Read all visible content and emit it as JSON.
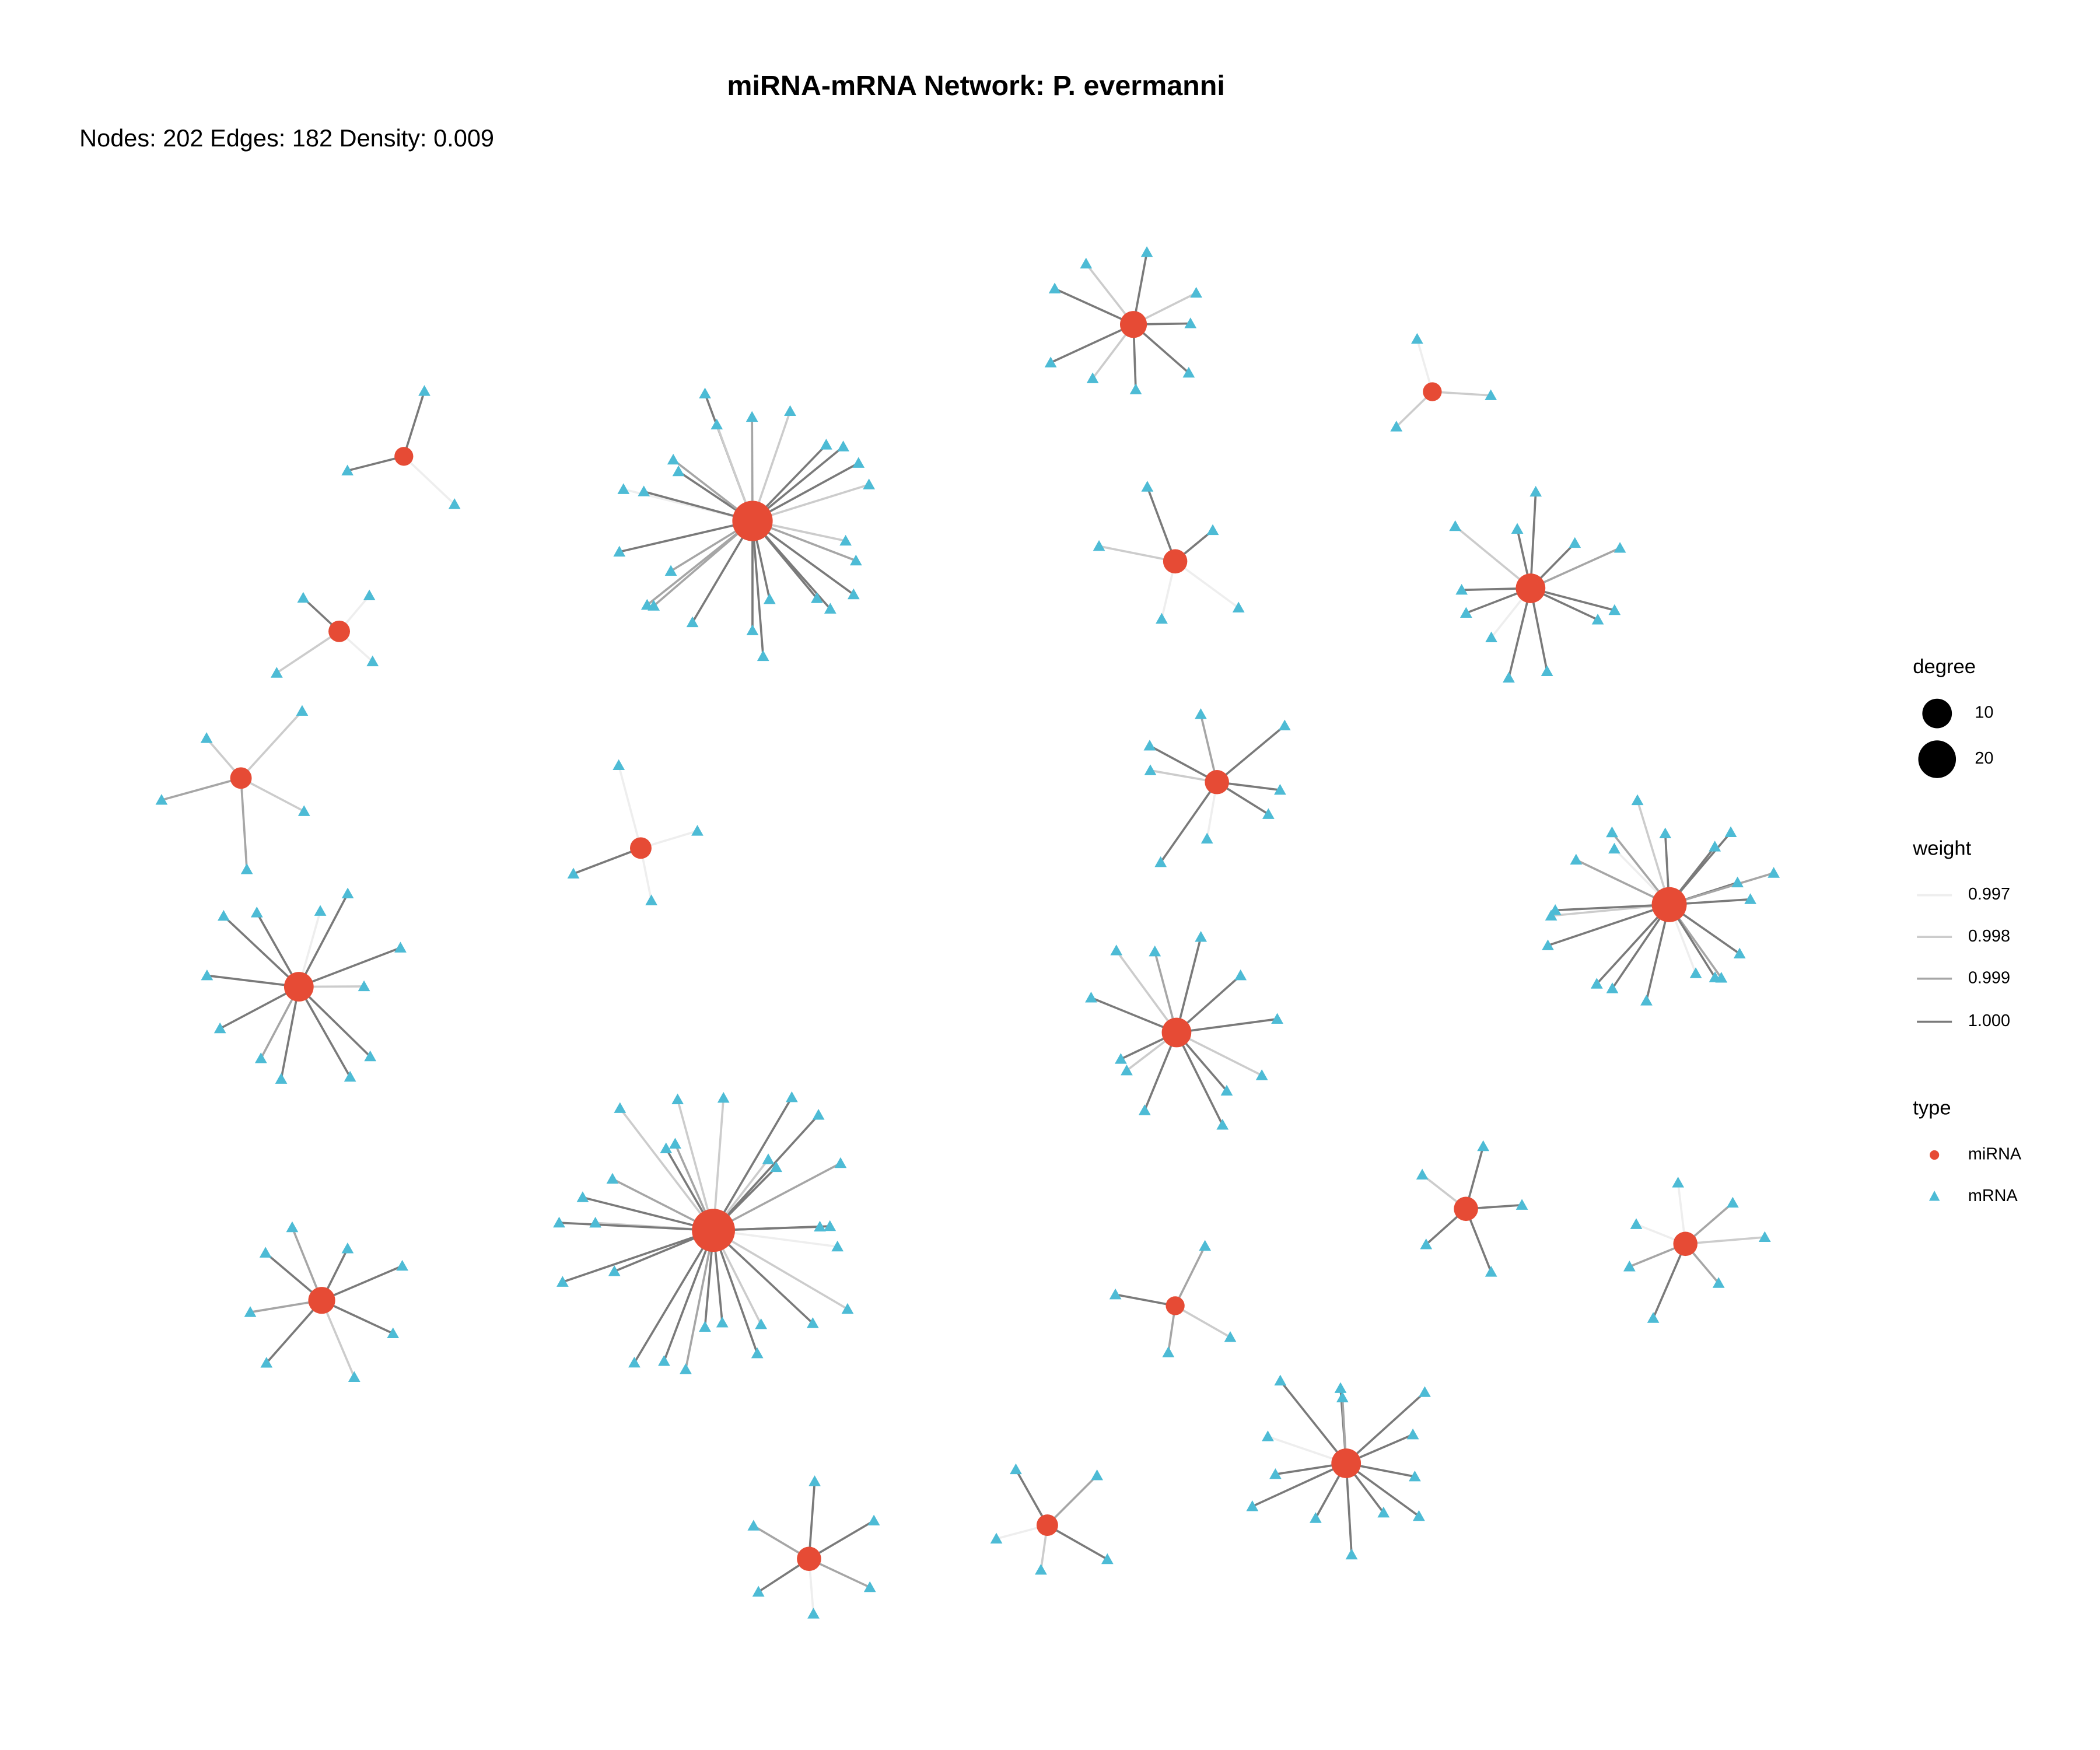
{
  "header": {
    "title": "miRNA-mRNA Network: P. evermanni",
    "subtitle": "Nodes: 202 Edges: 182 Density: 0.009"
  },
  "legend": {
    "degree": {
      "title": "degree",
      "items": [
        "10",
        "20"
      ]
    },
    "weight": {
      "title": "weight",
      "items": [
        "0.997",
        "0.998",
        "0.999",
        "1.000"
      ]
    },
    "type": {
      "title": "type",
      "items": [
        "miRNA",
        "mRNA"
      ]
    }
  }
}
